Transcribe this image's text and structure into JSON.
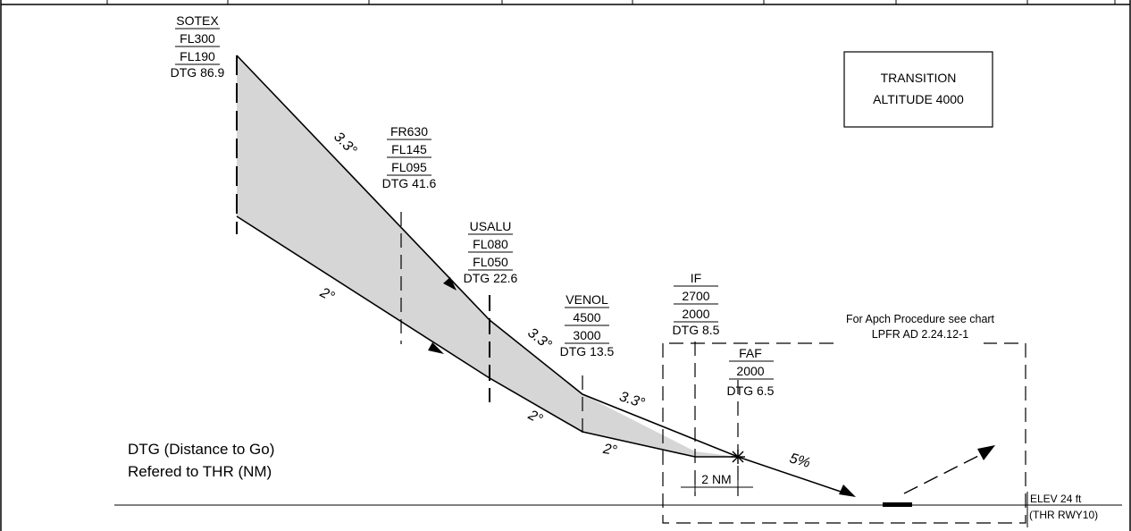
{
  "waypoints": {
    "sotex": {
      "name": "SOTEX",
      "upper": "FL300",
      "lower": "FL190",
      "dtg": "DTG 86.9"
    },
    "fr630": {
      "name": "FR630",
      "upper": "FL145",
      "lower": "FL095",
      "dtg": "DTG 41.6"
    },
    "usalu": {
      "name": "USALU",
      "upper": "FL080",
      "lower": "FL050",
      "dtg": "DTG 22.6"
    },
    "venol": {
      "name": "VENOL",
      "upper": "4500",
      "lower": "3000",
      "dtg": "DTG 13.5"
    },
    "if": {
      "name": "IF",
      "upper": "2700",
      "lower": "2000",
      "dtg": "DTG 8.5"
    },
    "faf": {
      "name": "FAF",
      "altitude": "2000",
      "dtg": "DTG 6.5"
    }
  },
  "gradients": {
    "upper_1": "3.3°",
    "upper_2": "3.3°",
    "upper_3": "3.3°",
    "lower_1": "2°",
    "lower_2": "2°",
    "lower_3": "2°",
    "final": "5%"
  },
  "transition_box": {
    "line1": "TRANSITION",
    "line2": "ALTITUDE 4000"
  },
  "apch_note": {
    "line1": "For Apch Procedure see chart",
    "line2": "LPFR AD 2.24.12-1"
  },
  "dtg_legend": {
    "line1": "DTG (Distance to Go)",
    "line2": "Refered to THR (NM)"
  },
  "scale_label": "2 NM",
  "threshold": {
    "elev": "ELEV 24 ft",
    "runway": "(THR RWY10)"
  }
}
